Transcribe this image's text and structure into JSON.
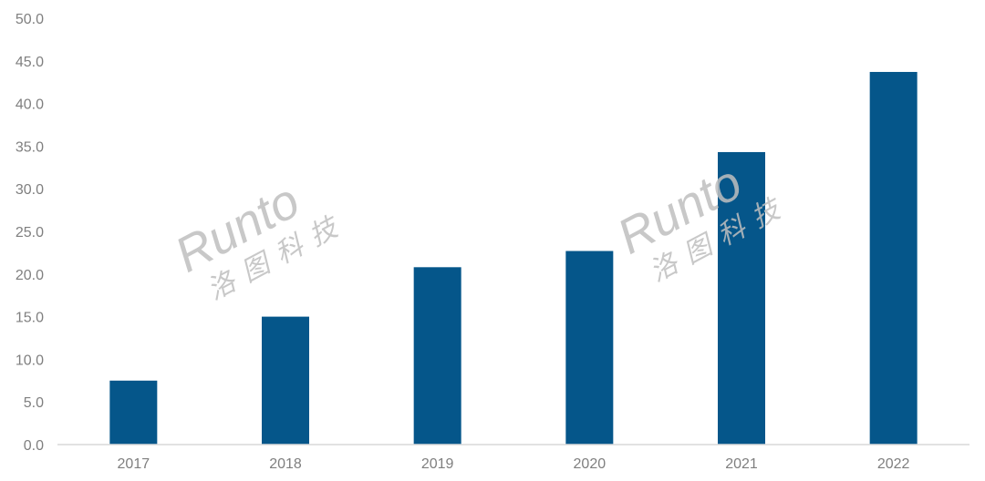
{
  "chart_data": {
    "type": "bar",
    "title": "",
    "xlabel": "",
    "ylabel": "",
    "categories": [
      "2017",
      "2018",
      "2019",
      "2020",
      "2021",
      "2022"
    ],
    "values": [
      7.5,
      15.0,
      20.8,
      22.7,
      34.3,
      43.7
    ],
    "ylim": [
      0,
      50
    ],
    "yticks": [
      "0.0",
      "5.0",
      "10.0",
      "15.0",
      "20.0",
      "25.0",
      "30.0",
      "35.0",
      "40.0",
      "45.0",
      "50.0"
    ],
    "grid": false,
    "bar_color": "#05568a",
    "axis_color": "#d9d9d9",
    "tick_color": "#7f7f7f"
  },
  "watermark": {
    "latin": "Runto",
    "chinese": "洛图科技"
  }
}
